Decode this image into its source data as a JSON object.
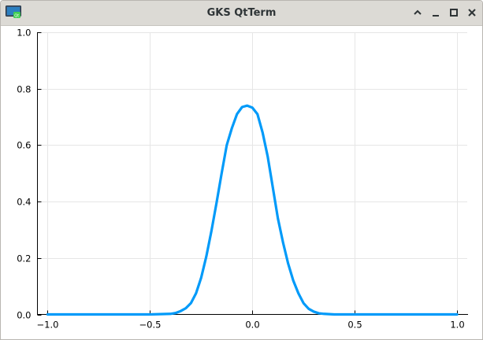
{
  "window": {
    "title": "GKS QtTerm",
    "app_icon": "qt-terminal-icon",
    "controls": [
      "chevron-up-icon",
      "minimize-icon",
      "maximize-icon",
      "close-icon"
    ]
  },
  "chart_data": {
    "type": "line",
    "title": "",
    "xlabel": "",
    "ylabel": "",
    "xlim": [
      -1.05,
      1.05
    ],
    "ylim": [
      0.0,
      1.0
    ],
    "grid": true,
    "legend": "none",
    "xticks": [
      -1.0,
      -0.5,
      0.0,
      0.5,
      1.0
    ],
    "xtick_labels": [
      "−1.0",
      "−0.5",
      "0.0",
      "0.5",
      "1.0"
    ],
    "yticks": [
      0.0,
      0.2,
      0.4,
      0.6,
      0.8,
      1.0
    ],
    "ytick_labels": [
      "0.0",
      "0.2",
      "0.4",
      "0.6",
      "0.8",
      "1.0"
    ],
    "series": [
      {
        "color": "#009af9",
        "x": [
          -1.0,
          -0.9,
          -0.8,
          -0.7,
          -0.6,
          -0.5,
          -0.45,
          -0.4,
          -0.375,
          -0.35,
          -0.325,
          -0.3,
          -0.275,
          -0.25,
          -0.225,
          -0.2,
          -0.175,
          -0.15,
          -0.125,
          -0.1,
          -0.075,
          -0.05,
          -0.025,
          0.0,
          0.025,
          0.05,
          0.075,
          0.1,
          0.125,
          0.15,
          0.175,
          0.2,
          0.225,
          0.25,
          0.275,
          0.3,
          0.325,
          0.35,
          0.375,
          0.4,
          0.45,
          0.5,
          0.6,
          0.7,
          0.8,
          0.9,
          1.0
        ],
        "y": [
          0.0,
          0.0,
          0.0,
          0.0,
          0.0,
          0.0,
          0.001,
          0.002,
          0.005,
          0.012,
          0.022,
          0.04,
          0.075,
          0.13,
          0.205,
          0.295,
          0.395,
          0.5,
          0.6,
          0.66,
          0.71,
          0.735,
          0.74,
          0.733,
          0.71,
          0.645,
          0.56,
          0.45,
          0.34,
          0.255,
          0.18,
          0.12,
          0.075,
          0.04,
          0.02,
          0.01,
          0.004,
          0.002,
          0.001,
          0.0,
          0.0,
          0.0,
          0.0,
          0.0,
          0.0,
          0.0,
          0.0
        ]
      }
    ]
  }
}
